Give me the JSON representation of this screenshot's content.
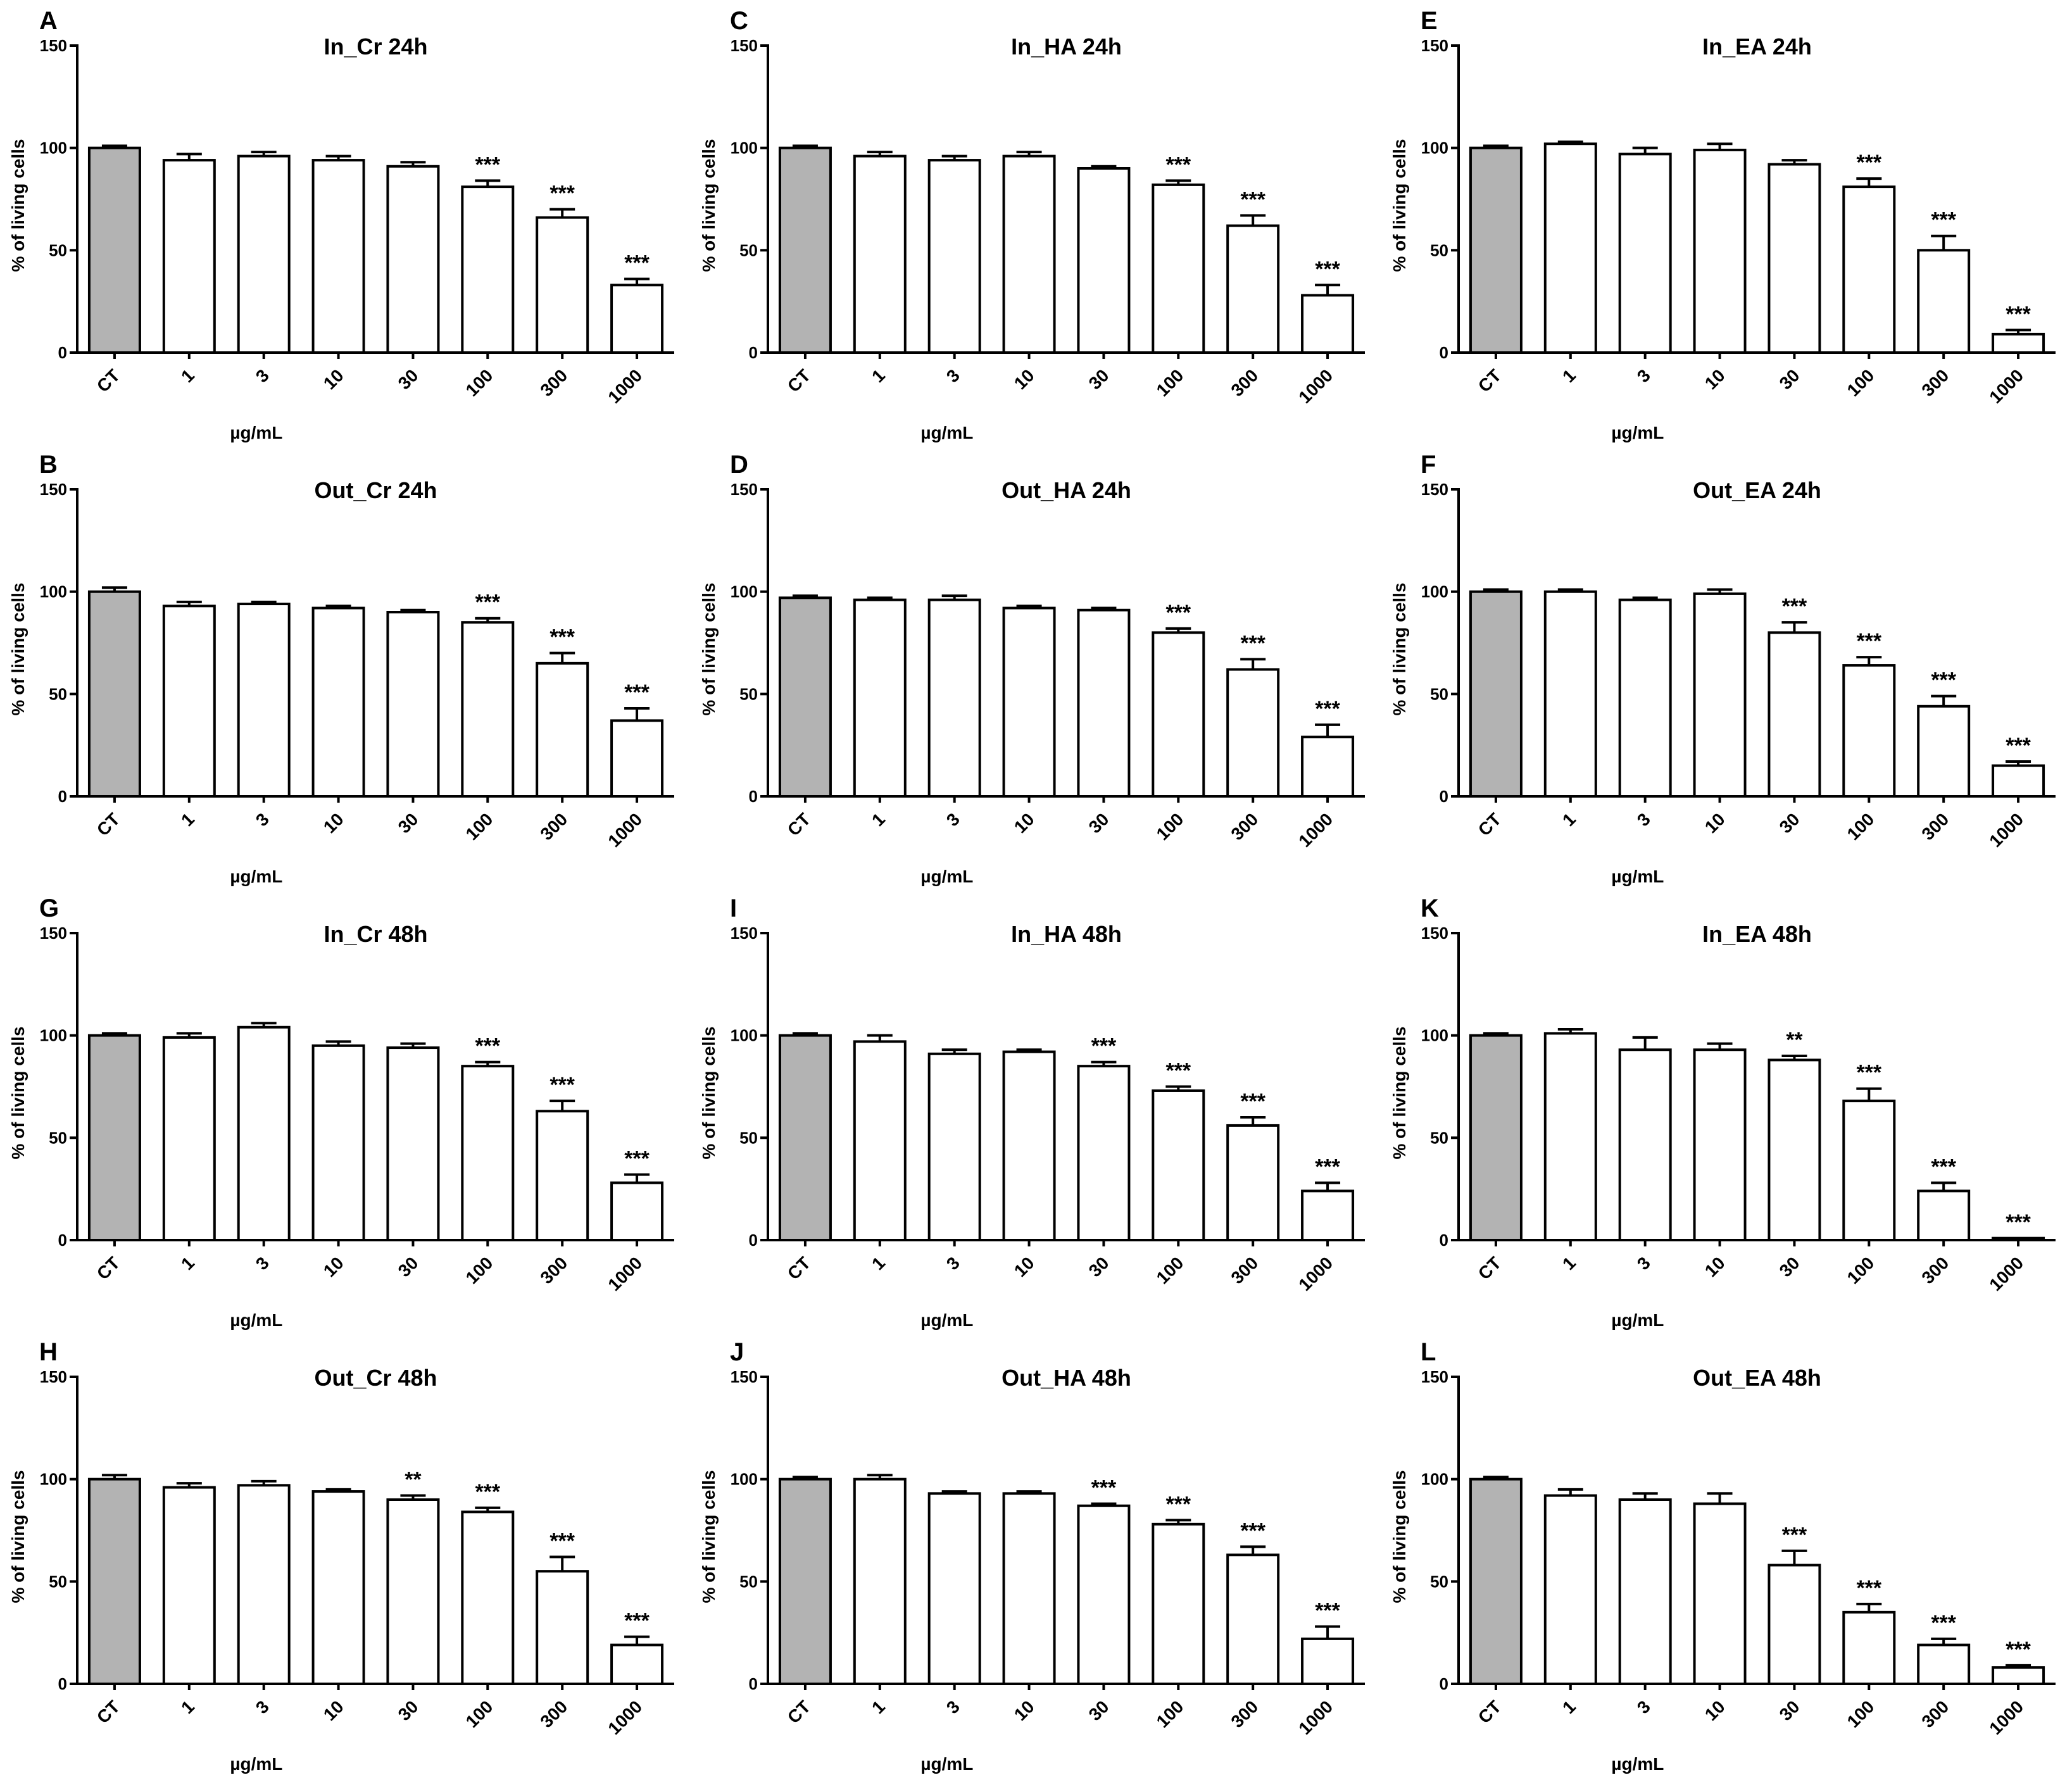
{
  "colors": {
    "control_bar": "#b3b3b3",
    "bar": "#ffffff",
    "stroke": "#000000"
  },
  "chart_data": [
    {
      "type": "bar",
      "panel": "A",
      "title": "In_Cr 24h",
      "ylabel": "% of living cells",
      "xlabel": "µg/mL",
      "ylim": [
        0,
        150
      ],
      "yticks": [
        "0",
        "50",
        "100",
        "150"
      ],
      "categories": [
        "CT",
        "1",
        "3",
        "10",
        "30",
        "100",
        "300",
        "1000"
      ],
      "values": [
        100,
        94,
        96,
        94,
        91,
        81,
        66,
        33
      ],
      "errors": [
        1,
        3,
        2,
        2,
        2,
        3,
        4,
        3
      ],
      "significance": [
        "",
        "",
        "",
        "",
        "",
        "***",
        "***",
        "***"
      ]
    },
    {
      "type": "bar",
      "panel": "B",
      "title": "Out_Cr 24h",
      "ylabel": "% of living cells",
      "xlabel": "µg/mL",
      "ylim": [
        0,
        150
      ],
      "yticks": [
        "0",
        "50",
        "100",
        "150"
      ],
      "categories": [
        "CT",
        "1",
        "3",
        "10",
        "30",
        "100",
        "300",
        "1000"
      ],
      "values": [
        100,
        93,
        94,
        92,
        90,
        85,
        65,
        37
      ],
      "errors": [
        2,
        2,
        1,
        1,
        1,
        2,
        5,
        6
      ],
      "significance": [
        "",
        "",
        "",
        "",
        "",
        "***",
        "***",
        "***"
      ]
    },
    {
      "type": "bar",
      "panel": "C",
      "title": "In_HA 24h",
      "ylabel": "% of living cells",
      "xlabel": "µg/mL",
      "ylim": [
        0,
        150
      ],
      "yticks": [
        "0",
        "50",
        "100",
        "150"
      ],
      "categories": [
        "CT",
        "1",
        "3",
        "10",
        "30",
        "100",
        "300",
        "1000"
      ],
      "values": [
        100,
        96,
        94,
        96,
        90,
        82,
        62,
        28
      ],
      "errors": [
        1,
        2,
        2,
        2,
        1,
        2,
        5,
        5
      ],
      "significance": [
        "",
        "",
        "",
        "",
        "",
        "***",
        "***",
        "***"
      ]
    },
    {
      "type": "bar",
      "panel": "D",
      "title": "Out_HA 24h",
      "ylabel": "% of living cells",
      "xlabel": "µg/mL",
      "ylim": [
        0,
        150
      ],
      "yticks": [
        "0",
        "50",
        "100",
        "150"
      ],
      "categories": [
        "CT",
        "1",
        "3",
        "10",
        "30",
        "100",
        "300",
        "1000"
      ],
      "values": [
        97,
        96,
        96,
        92,
        91,
        80,
        62,
        29
      ],
      "errors": [
        1,
        1,
        2,
        1,
        1,
        2,
        5,
        6
      ],
      "significance": [
        "",
        "",
        "",
        "",
        "",
        "***",
        "***",
        "***"
      ]
    },
    {
      "type": "bar",
      "panel": "E",
      "title": "In_EA 24h",
      "ylabel": "% of living cells",
      "xlabel": "µg/mL",
      "ylim": [
        0,
        150
      ],
      "yticks": [
        "0",
        "50",
        "100",
        "150"
      ],
      "categories": [
        "CT",
        "1",
        "3",
        "10",
        "30",
        "100",
        "300",
        "1000"
      ],
      "values": [
        100,
        102,
        97,
        99,
        92,
        81,
        50,
        9
      ],
      "errors": [
        1,
        1,
        3,
        3,
        2,
        4,
        7,
        2
      ],
      "significance": [
        "",
        "",
        "",
        "",
        "",
        "***",
        "***",
        "***"
      ]
    },
    {
      "type": "bar",
      "panel": "F",
      "title": "Out_EA 24h",
      "ylabel": "% of living cells",
      "xlabel": "µg/mL",
      "ylim": [
        0,
        150
      ],
      "yticks": [
        "0",
        "50",
        "100",
        "150"
      ],
      "categories": [
        "CT",
        "1",
        "3",
        "10",
        "30",
        "100",
        "300",
        "1000"
      ],
      "values": [
        100,
        100,
        96,
        99,
        80,
        64,
        44,
        15
      ],
      "errors": [
        1,
        1,
        1,
        2,
        5,
        4,
        5,
        2
      ],
      "significance": [
        "",
        "",
        "",
        "",
        "***",
        "***",
        "***",
        "***"
      ]
    },
    {
      "type": "bar",
      "panel": "G",
      "title": "In_Cr 48h",
      "ylabel": "% of living cells",
      "xlabel": "µg/mL",
      "ylim": [
        0,
        150
      ],
      "yticks": [
        "0",
        "50",
        "100",
        "150"
      ],
      "categories": [
        "CT",
        "1",
        "3",
        "10",
        "30",
        "100",
        "300",
        "1000"
      ],
      "values": [
        100,
        99,
        104,
        95,
        94,
        85,
        63,
        28
      ],
      "errors": [
        1,
        2,
        2,
        2,
        2,
        2,
        5,
        4
      ],
      "significance": [
        "",
        "",
        "",
        "",
        "",
        "***",
        "***",
        "***"
      ]
    },
    {
      "type": "bar",
      "panel": "H",
      "title": "Out_Cr 48h",
      "ylabel": "% of living cells",
      "xlabel": "µg/mL",
      "ylim": [
        0,
        150
      ],
      "yticks": [
        "0",
        "50",
        "100",
        "150"
      ],
      "categories": [
        "CT",
        "1",
        "3",
        "10",
        "30",
        "100",
        "300",
        "1000"
      ],
      "values": [
        100,
        96,
        97,
        94,
        90,
        84,
        55,
        19
      ],
      "errors": [
        2,
        2,
        2,
        1,
        2,
        2,
        7,
        4
      ],
      "significance": [
        "",
        "",
        "",
        "",
        "**",
        "***",
        "***",
        "***"
      ]
    },
    {
      "type": "bar",
      "panel": "I",
      "title": "In_HA 48h",
      "ylabel": "% of living cells",
      "xlabel": "µg/mL",
      "ylim": [
        0,
        150
      ],
      "yticks": [
        "0",
        "50",
        "100",
        "150"
      ],
      "categories": [
        "CT",
        "1",
        "3",
        "10",
        "30",
        "100",
        "300",
        "1000"
      ],
      "values": [
        100,
        97,
        91,
        92,
        85,
        73,
        56,
        24
      ],
      "errors": [
        1,
        3,
        2,
        1,
        2,
        2,
        4,
        4
      ],
      "significance": [
        "",
        "",
        "",
        "",
        "***",
        "***",
        "***",
        "***"
      ]
    },
    {
      "type": "bar",
      "panel": "J",
      "title": "Out_HA 48h",
      "ylabel": "% of living cells",
      "xlabel": "µg/mL",
      "ylim": [
        0,
        150
      ],
      "yticks": [
        "0",
        "50",
        "100",
        "150"
      ],
      "categories": [
        "CT",
        "1",
        "3",
        "10",
        "30",
        "100",
        "300",
        "1000"
      ],
      "values": [
        100,
        100,
        93,
        93,
        87,
        78,
        63,
        22
      ],
      "errors": [
        1,
        2,
        1,
        1,
        1,
        2,
        4,
        6
      ],
      "significance": [
        "",
        "",
        "",
        "",
        "***",
        "***",
        "***",
        "***"
      ]
    },
    {
      "type": "bar",
      "panel": "K",
      "title": "In_EA 48h",
      "ylabel": "% of living cells",
      "xlabel": "µg/mL",
      "ylim": [
        0,
        150
      ],
      "yticks": [
        "0",
        "50",
        "100",
        "150"
      ],
      "categories": [
        "CT",
        "1",
        "3",
        "10",
        "30",
        "100",
        "300",
        "1000"
      ],
      "values": [
        100,
        101,
        93,
        93,
        88,
        68,
        24,
        1
      ],
      "errors": [
        1,
        2,
        6,
        3,
        2,
        6,
        4,
        0
      ],
      "significance": [
        "",
        "",
        "",
        "",
        "**",
        "***",
        "***",
        "***"
      ]
    },
    {
      "type": "bar",
      "panel": "L",
      "title": "Out_EA 48h",
      "ylabel": "% of living cells",
      "xlabel": "µg/mL",
      "ylim": [
        0,
        150
      ],
      "yticks": [
        "0",
        "50",
        "100",
        "150"
      ],
      "categories": [
        "CT",
        "1",
        "3",
        "10",
        "30",
        "100",
        "300",
        "1000"
      ],
      "values": [
        100,
        92,
        90,
        88,
        58,
        35,
        19,
        8
      ],
      "errors": [
        1,
        3,
        3,
        5,
        7,
        4,
        3,
        1
      ],
      "significance": [
        "",
        "",
        "",
        "",
        "***",
        "***",
        "***",
        "***"
      ]
    }
  ]
}
